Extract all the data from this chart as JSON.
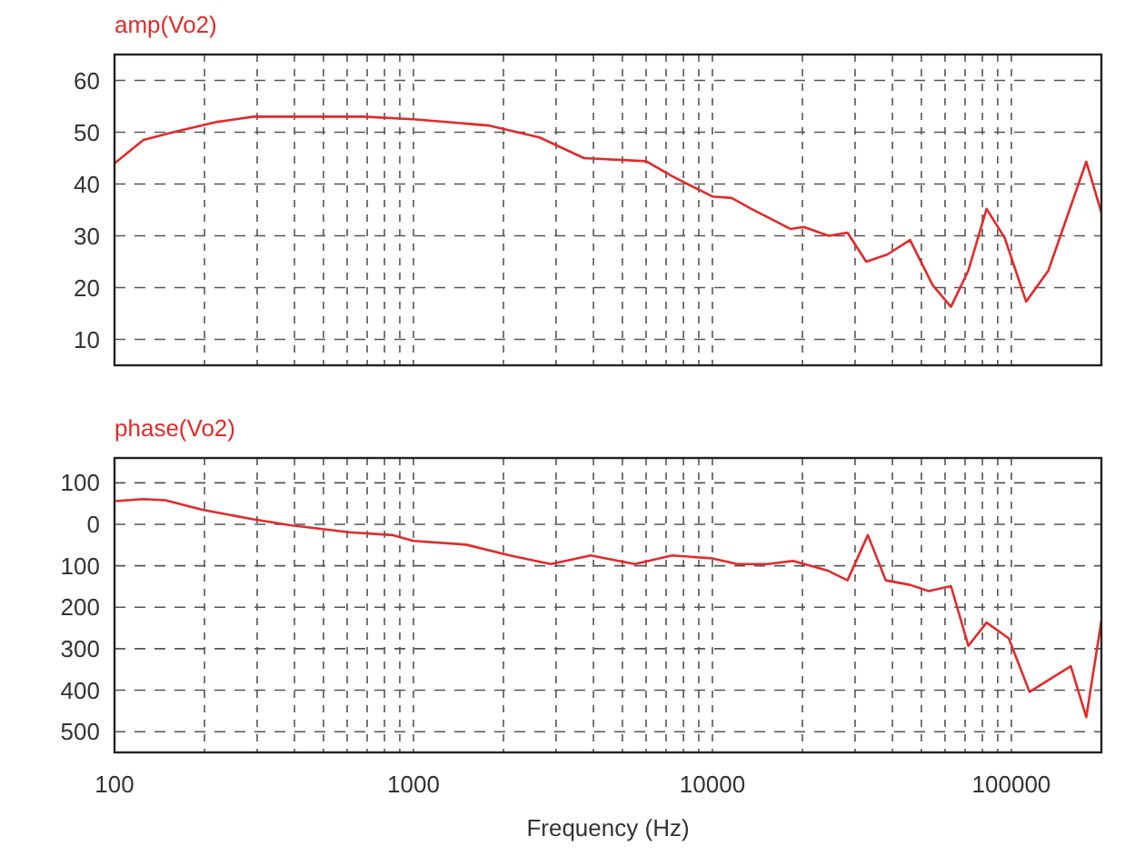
{
  "chart_data": [
    {
      "type": "line",
      "title": "amp(Vo2)",
      "log": "x",
      "grid": true,
      "tick_labels": "y",
      "xlim": [
        100,
        200000
      ],
      "ylim": [
        5,
        65
      ],
      "yticks": [
        10,
        20,
        30,
        40,
        50,
        60
      ],
      "xticks": [
        100,
        {
          "value": 200,
          "label": null
        },
        {
          "value": 300,
          "label": null
        },
        {
          "value": 400,
          "label": null
        },
        {
          "value": 500,
          "label": null
        },
        {
          "value": 600,
          "label": null
        },
        {
          "value": 700,
          "label": null
        },
        {
          "value": 800,
          "label": null
        },
        {
          "value": 900,
          "label": null
        },
        1000,
        {
          "value": 2000,
          "label": null
        },
        {
          "value": 3000,
          "label": null
        },
        {
          "value": 4000,
          "label": null
        },
        {
          "value": 5000,
          "label": null
        },
        {
          "value": 6000,
          "label": null
        },
        {
          "value": 7000,
          "label": null
        },
        {
          "value": 8000,
          "label": null
        },
        {
          "value": 9000,
          "label": null
        },
        10000,
        {
          "value": 20000,
          "label": null
        },
        {
          "value": 30000,
          "label": null
        },
        {
          "value": 40000,
          "label": null
        },
        {
          "value": 50000,
          "label": null
        },
        {
          "value": 60000,
          "label": null
        },
        {
          "value": 70000,
          "label": null
        },
        {
          "value": 80000,
          "label": null
        },
        {
          "value": 90000,
          "label": null
        },
        100000
      ],
      "series": [
        {
          "color": "#e32a2a",
          "x": [
            100,
            125,
            157,
            221,
            292,
            682,
            1000,
            1780,
            2640,
            3720,
            6000,
            7330,
            10000,
            11600,
            13500,
            18300,
            20200,
            24500,
            28300,
            32700,
            38500,
            45800,
            54500,
            62800,
            71800,
            82600,
            95000,
            112000,
            133000,
            178000,
            200000
          ],
          "values": [
            44,
            48.5,
            50,
            52,
            53,
            53,
            52.5,
            51.3,
            49,
            45,
            44.4,
            41.5,
            37.6,
            37.3,
            35.2,
            31.3,
            31.7,
            30,
            30.6,
            25,
            26.4,
            29.2,
            20.5,
            16.3,
            23.3,
            35.2,
            29.6,
            17.3,
            23.3,
            44.3,
            34.5
          ]
        }
      ]
    },
    {
      "type": "line",
      "title": "phase(Vo2)",
      "xlabel": "Frequency (Hz)",
      "log": "x",
      "grid": true,
      "xlim": [
        100,
        200000
      ],
      "ylim": [
        -550,
        160
      ],
      "yticks": [
        100,
        0,
        {
          "value": -100,
          "label": "100"
        },
        {
          "value": -200,
          "label": "200"
        },
        {
          "value": -300,
          "label": "300"
        },
        {
          "value": -400,
          "label": "400"
        },
        {
          "value": -500,
          "label": "500"
        }
      ],
      "xticks": [
        100,
        {
          "value": 200,
          "label": null
        },
        {
          "value": 300,
          "label": null
        },
        {
          "value": 400,
          "label": null
        },
        {
          "value": 500,
          "label": null
        },
        {
          "value": 600,
          "label": null
        },
        {
          "value": 700,
          "label": null
        },
        {
          "value": 800,
          "label": null
        },
        {
          "value": 900,
          "label": null
        },
        1000,
        {
          "value": 2000,
          "label": null
        },
        {
          "value": 3000,
          "label": null
        },
        {
          "value": 4000,
          "label": null
        },
        {
          "value": 5000,
          "label": null
        },
        {
          "value": 6000,
          "label": null
        },
        {
          "value": 7000,
          "label": null
        },
        {
          "value": 8000,
          "label": null
        },
        {
          "value": 9000,
          "label": null
        },
        10000,
        {
          "value": 20000,
          "label": null
        },
        {
          "value": 30000,
          "label": null
        },
        {
          "value": 40000,
          "label": null
        },
        {
          "value": 50000,
          "label": null
        },
        {
          "value": 60000,
          "label": null
        },
        {
          "value": 70000,
          "label": null
        },
        {
          "value": 80000,
          "label": null
        },
        {
          "value": 90000,
          "label": null
        },
        100000
      ],
      "series": [
        {
          "color": "#e32a2a",
          "x": [
            100,
            125,
            148,
            197,
            292,
            388,
            610,
            855,
            1000,
            1500,
            2100,
            2880,
            3920,
            5500,
            7330,
            10000,
            12100,
            15300,
            18600,
            24200,
            28300,
            33100,
            38000,
            45800,
            52900,
            62800,
            71800,
            82600,
            98000,
            115000,
            158000,
            178000,
            200000
          ],
          "values": [
            56,
            61,
            58,
            35,
            12,
            -2,
            -19,
            -26,
            -40,
            -49,
            -75,
            -96,
            -75,
            -96,
            -75,
            -82,
            -96,
            -96,
            -88,
            -111,
            -135,
            -26,
            -135,
            -146,
            -161,
            -149,
            -293,
            -237,
            -275,
            -404,
            -342,
            -465,
            -233
          ]
        }
      ]
    }
  ]
}
